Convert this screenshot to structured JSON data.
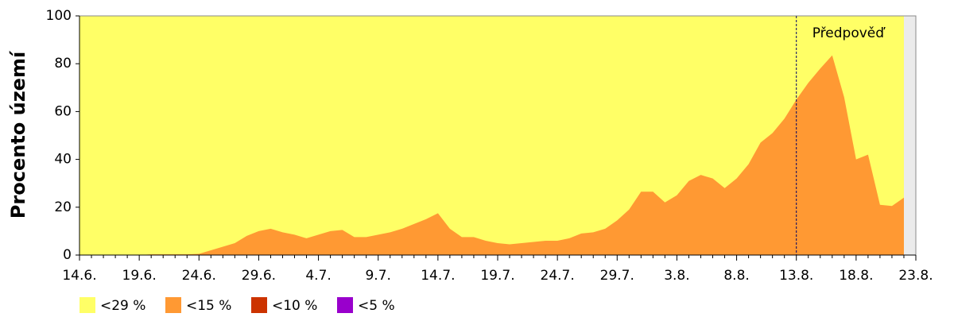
{
  "chart_data": {
    "type": "area",
    "y_label": "Procento území",
    "categories": [
      "14.6.",
      null,
      null,
      null,
      null,
      "19.6.",
      null,
      null,
      null,
      null,
      "24.6.",
      null,
      null,
      null,
      null,
      "29.6.",
      null,
      null,
      null,
      null,
      "4.7.",
      null,
      null,
      null,
      null,
      "9.7.",
      null,
      null,
      null,
      null,
      "14.7.",
      null,
      null,
      null,
      null,
      "19.7.",
      null,
      null,
      null,
      null,
      "24.7.",
      null,
      null,
      null,
      null,
      "29.7.",
      null,
      null,
      null,
      null,
      "3.8.",
      null,
      null,
      null,
      null,
      "8.8.",
      null,
      null,
      null,
      null,
      "13.8.",
      null,
      null,
      null,
      null,
      "18.8.",
      null,
      null,
      null,
      null,
      "23.8."
    ],
    "series": [
      {
        "name": "<29 %",
        "color": "#ffff66",
        "values": [
          100,
          100,
          100,
          100,
          100,
          100,
          100,
          100,
          100,
          100,
          100,
          100,
          100,
          100,
          100,
          100,
          100,
          100,
          100,
          100,
          100,
          100,
          100,
          100,
          100,
          100,
          100,
          100,
          100,
          100,
          100,
          100,
          100,
          100,
          100,
          100,
          100,
          100,
          100,
          100,
          100,
          100,
          100,
          100,
          100,
          100,
          100,
          100,
          100,
          100,
          100,
          100,
          100,
          100,
          100,
          100,
          100,
          100,
          100,
          100,
          100,
          100,
          100,
          100,
          100,
          100,
          100,
          100,
          100,
          100,
          null
        ]
      },
      {
        "name": "<15 %",
        "color": "#ff9933",
        "values": [
          0,
          0,
          0,
          0,
          0,
          0,
          0.3,
          0.3,
          0.3,
          0.3,
          0.5,
          2,
          3.5,
          5,
          8,
          10,
          11,
          9.5,
          8.5,
          7,
          8.5,
          10,
          10.5,
          7.5,
          7.5,
          8.5,
          9.5,
          11,
          13,
          15,
          17.5,
          11,
          7.5,
          7.5,
          6,
          5,
          4.5,
          5,
          5.5,
          6,
          6,
          7,
          9,
          9.5,
          11,
          14.5,
          19,
          26.5,
          26.5,
          22,
          25,
          31,
          33.5,
          32,
          28,
          32,
          38,
          47,
          51,
          57,
          65,
          72,
          78,
          83.5,
          66,
          40,
          42,
          21,
          20.5,
          24,
          null
        ]
      },
      {
        "name": "<10 %",
        "color": "#cc3300",
        "values": [
          0,
          0,
          0,
          0,
          0,
          0,
          0,
          0,
          0,
          0,
          0,
          0,
          0,
          0,
          0,
          0,
          0,
          0,
          0,
          0,
          0,
          0,
          0,
          0,
          0,
          0,
          0,
          0,
          0,
          0,
          0,
          0,
          0,
          0,
          0,
          0,
          0,
          0,
          0,
          0,
          0,
          0,
          0,
          0,
          0,
          0,
          0,
          0,
          0,
          0,
          0,
          0,
          0,
          0,
          0,
          0,
          0,
          0,
          0,
          0,
          0,
          0,
          0,
          0,
          0,
          0,
          0,
          0,
          0,
          0,
          null
        ]
      },
      {
        "name": "<5 %",
        "color": "#9900cc",
        "values": [
          0,
          0,
          0,
          0,
          0,
          0,
          0,
          0,
          0,
          0,
          0,
          0,
          0,
          0,
          0,
          0,
          0,
          0,
          0,
          0,
          0,
          0,
          0,
          0,
          0,
          0,
          0,
          0,
          0,
          0,
          0,
          0,
          0,
          0,
          0,
          0,
          0,
          0,
          0,
          0,
          0,
          0,
          0,
          0,
          0,
          0,
          0,
          0,
          0,
          0,
          0,
          0,
          0,
          0,
          0,
          0,
          0,
          0,
          0,
          0,
          0,
          0,
          0,
          0,
          0,
          0,
          0,
          0,
          0,
          0,
          null
        ]
      }
    ],
    "annotation": {
      "text": "Předpověď",
      "x": "13.8."
    },
    "ylim": [
      0,
      100
    ],
    "yticks": [
      0,
      20,
      40,
      60,
      80,
      100
    ]
  }
}
